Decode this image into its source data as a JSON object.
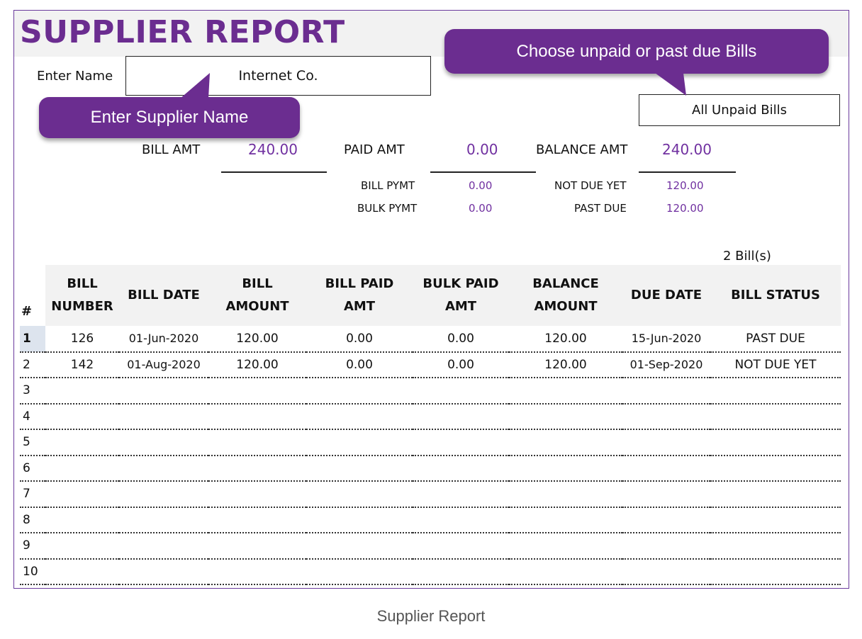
{
  "title": "SUPPLIER REPORT",
  "enter_name_label": "Enter Name",
  "supplier_name": "Internet Co.",
  "filter_value": "All Unpaid Bills",
  "callouts": {
    "supplier": "Enter Supplier Name",
    "filter": "Choose unpaid or past due Bills"
  },
  "summary": {
    "bill_amt_label": "BILL AMT",
    "bill_amt": "240.00",
    "paid_amt_label": "PAID AMT",
    "paid_amt": "0.00",
    "balance_amt_label": "BALANCE AMT",
    "balance_amt": "240.00",
    "bill_pymt_label": "BILL  PYMT",
    "bill_pymt": "0.00",
    "bulk_pymt_label": "BULK PYMT",
    "bulk_pymt": "0.00",
    "not_due_yet_label": "NOT DUE YET",
    "not_due_yet": "120.00",
    "past_due_label": "PAST DUE",
    "past_due": "120.00"
  },
  "bill_count": "2 Bill(s)",
  "table": {
    "headers": {
      "num": "#",
      "bill_number_1": "BILL",
      "bill_number_2": "NUMBER",
      "bill_date": "BILL DATE",
      "bill_amount_1": "BILL",
      "bill_amount_2": "AMOUNT",
      "bill_paid_1": "BILL PAID",
      "bill_paid_2": "AMT",
      "bulk_paid_1": "BULK PAID",
      "bulk_paid_2": "AMT",
      "balance_1": "BALANCE",
      "balance_2": "AMOUNT",
      "due_date": "DUE DATE",
      "status": "BILL STATUS"
    },
    "rows": [
      {
        "n": "1",
        "bill": "126",
        "date": "01-Jun-2020",
        "amount": "120.00",
        "paid": "0.00",
        "bulk": "0.00",
        "balance": "120.00",
        "due": "15-Jun-2020",
        "status": "PAST DUE"
      },
      {
        "n": "2",
        "bill": "142",
        "date": "01-Aug-2020",
        "amount": "120.00",
        "paid": "0.00",
        "bulk": "0.00",
        "balance": "120.00",
        "due": "01-Sep-2020",
        "status": "NOT DUE YET"
      },
      {
        "n": "3",
        "bill": "",
        "date": "",
        "amount": "",
        "paid": "",
        "bulk": "",
        "balance": "",
        "due": "",
        "status": ""
      },
      {
        "n": "4",
        "bill": "",
        "date": "",
        "amount": "",
        "paid": "",
        "bulk": "",
        "balance": "",
        "due": "",
        "status": ""
      },
      {
        "n": "5",
        "bill": "",
        "date": "",
        "amount": "",
        "paid": "",
        "bulk": "",
        "balance": "",
        "due": "",
        "status": ""
      },
      {
        "n": "6",
        "bill": "",
        "date": "",
        "amount": "",
        "paid": "",
        "bulk": "",
        "balance": "",
        "due": "",
        "status": ""
      },
      {
        "n": "7",
        "bill": "",
        "date": "",
        "amount": "",
        "paid": "",
        "bulk": "",
        "balance": "",
        "due": "",
        "status": ""
      },
      {
        "n": "8",
        "bill": "",
        "date": "",
        "amount": "",
        "paid": "",
        "bulk": "",
        "balance": "",
        "due": "",
        "status": ""
      },
      {
        "n": "9",
        "bill": "",
        "date": "",
        "amount": "",
        "paid": "",
        "bulk": "",
        "balance": "",
        "due": "",
        "status": ""
      },
      {
        "n": "10",
        "bill": "",
        "date": "",
        "amount": "",
        "paid": "",
        "bulk": "",
        "balance": "",
        "due": "",
        "status": ""
      }
    ]
  },
  "caption": "Supplier Report",
  "colors": {
    "accent": "#6b2d90",
    "value_text": "#7030a0",
    "header_band": "#f2f2f2"
  }
}
